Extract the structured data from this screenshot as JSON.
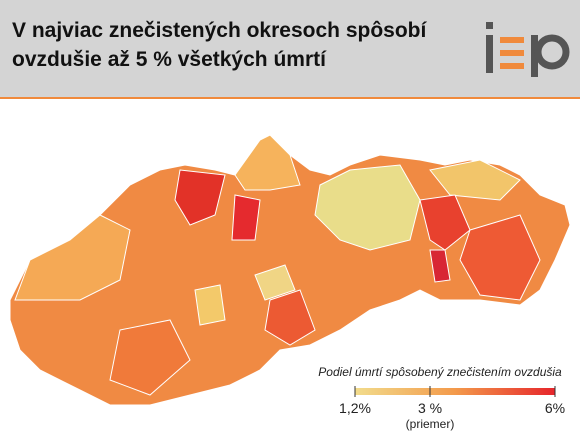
{
  "header": {
    "title": [
      "V najviac znečistených okresoch spôsobí",
      "ovzdušie až 5 % všetkých úmrtí"
    ]
  },
  "legend": {
    "title": "Podiel úmrtí spôsobený znečistením ovzdušia",
    "range": [
      1.2,
      6
    ],
    "ticks": [
      {
        "value": 1.2,
        "label": "1,2%"
      },
      {
        "value": 3,
        "label": "3 %"
      },
      {
        "value": 6,
        "label": "6%"
      }
    ],
    "annotation": "(priemer)",
    "colors": [
      "#f2dc8c",
      "#f39a4b",
      "#e6252b"
    ]
  }
}
